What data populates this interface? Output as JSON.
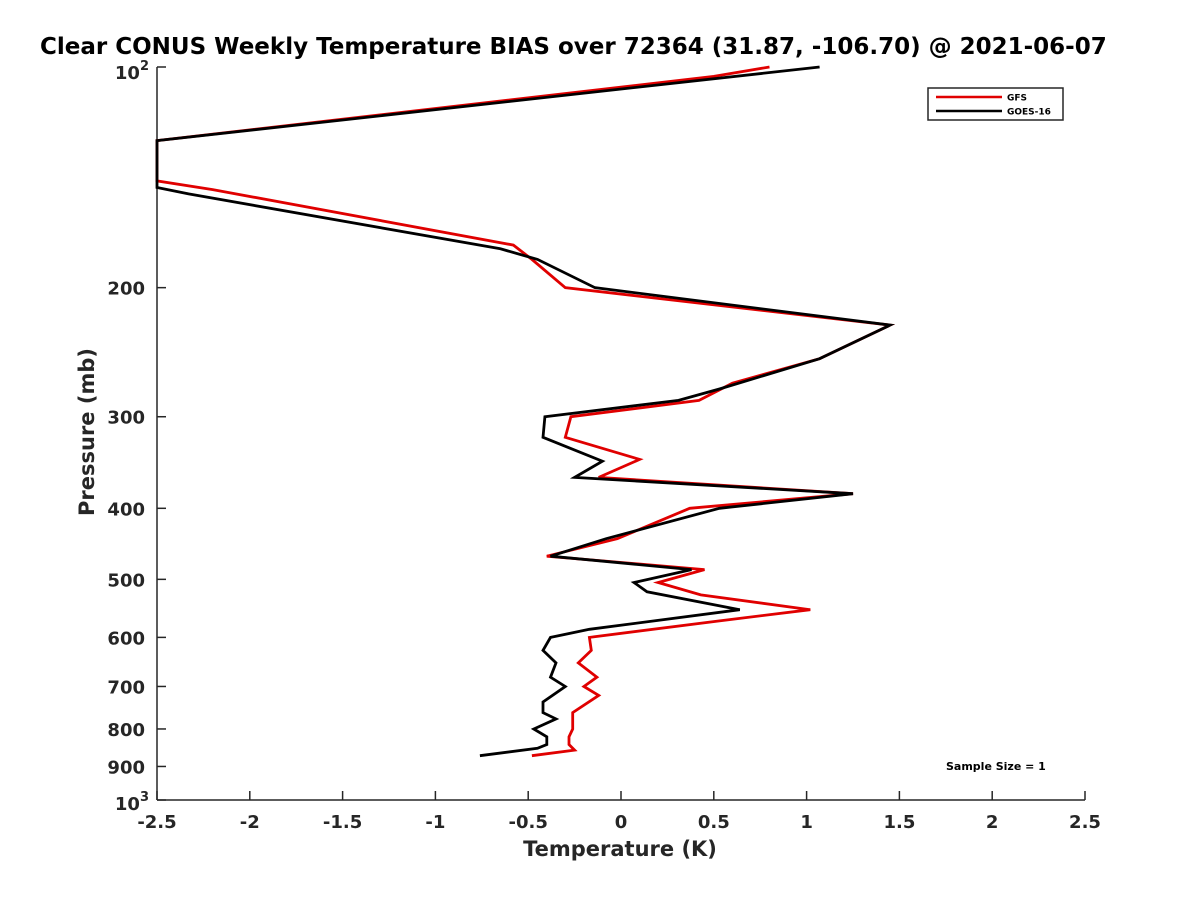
{
  "chart_data": {
    "type": "line",
    "title": "Clear CONUS Weekly Temperature BIAS over 72364 (31.87, -106.70) @ 2021-06-07",
    "xlabel": "Temperature (K)",
    "ylabel": "Pressure (mb)",
    "xlim": [
      -2.5,
      2.5
    ],
    "ylim": [
      100,
      1000
    ],
    "y_scale": "log",
    "y_direction": "reversed",
    "grid": false,
    "legend_position": "top-right",
    "x_ticks": [
      -2.5,
      -2,
      -1.5,
      -1,
      -0.5,
      0,
      0.5,
      1,
      1.5,
      2,
      2.5
    ],
    "x_tick_labels": [
      "-2.5",
      "-2",
      "-1.5",
      "-1",
      "-0.5",
      "0",
      "0.5",
      "1",
      "1.5",
      "2",
      "2.5"
    ],
    "y_ticks": [
      200,
      300,
      400,
      500,
      600,
      700,
      800,
      900
    ],
    "y_tick_labels": [
      "200",
      "300",
      "400",
      "500",
      "600",
      "700",
      "800",
      "900"
    ],
    "y_top_label": {
      "base": "10",
      "exp": "2"
    },
    "y_bottom_label": {
      "base": "10",
      "exp": "3"
    },
    "annotation": "Sample Size = 1",
    "series": [
      {
        "name": "GFS",
        "color": "#e00000",
        "points": [
          {
            "x": 0.8,
            "p": 100
          },
          {
            "x": 0.5,
            "p": 103
          },
          {
            "x": -2.5,
            "p": 126
          },
          {
            "x": -2.5,
            "p": 143
          },
          {
            "x": -2.2,
            "p": 147
          },
          {
            "x": -0.58,
            "p": 175
          },
          {
            "x": -0.48,
            "p": 183
          },
          {
            "x": -0.3,
            "p": 200
          },
          {
            "x": 1.45,
            "p": 225
          },
          {
            "x": 1.07,
            "p": 250
          },
          {
            "x": 0.6,
            "p": 270
          },
          {
            "x": 0.42,
            "p": 285
          },
          {
            "x": -0.27,
            "p": 300
          },
          {
            "x": -0.3,
            "p": 320
          },
          {
            "x": 0.1,
            "p": 343
          },
          {
            "x": -0.12,
            "p": 363
          },
          {
            "x": 1.25,
            "p": 382
          },
          {
            "x": 0.37,
            "p": 400
          },
          {
            "x": -0.02,
            "p": 440
          },
          {
            "x": -0.4,
            "p": 465
          },
          {
            "x": 0.45,
            "p": 485
          },
          {
            "x": 0.2,
            "p": 505
          },
          {
            "x": 0.43,
            "p": 525
          },
          {
            "x": 1.02,
            "p": 550
          },
          {
            "x": 0.52,
            "p": 570
          },
          {
            "x": -0.17,
            "p": 600
          },
          {
            "x": -0.16,
            "p": 625
          },
          {
            "x": -0.23,
            "p": 650
          },
          {
            "x": -0.13,
            "p": 680
          },
          {
            "x": -0.2,
            "p": 700
          },
          {
            "x": -0.12,
            "p": 720
          },
          {
            "x": -0.26,
            "p": 760
          },
          {
            "x": -0.26,
            "p": 800
          },
          {
            "x": -0.28,
            "p": 820
          },
          {
            "x": -0.28,
            "p": 840
          },
          {
            "x": -0.25,
            "p": 855
          },
          {
            "x": -0.48,
            "p": 870
          }
        ]
      },
      {
        "name": "GOES-16",
        "color": "#000000",
        "points": [
          {
            "x": 1.07,
            "p": 100
          },
          {
            "x": -2.5,
            "p": 126
          },
          {
            "x": -2.5,
            "p": 146
          },
          {
            "x": -2.33,
            "p": 149
          },
          {
            "x": -0.65,
            "p": 177
          },
          {
            "x": -0.45,
            "p": 183
          },
          {
            "x": -0.14,
            "p": 200
          },
          {
            "x": 1.45,
            "p": 225
          },
          {
            "x": 1.07,
            "p": 250
          },
          {
            "x": 0.53,
            "p": 275
          },
          {
            "x": 0.31,
            "p": 285
          },
          {
            "x": -0.41,
            "p": 300
          },
          {
            "x": -0.42,
            "p": 320
          },
          {
            "x": -0.1,
            "p": 345
          },
          {
            "x": -0.25,
            "p": 363
          },
          {
            "x": 1.25,
            "p": 382
          },
          {
            "x": 0.53,
            "p": 400
          },
          {
            "x": -0.08,
            "p": 440
          },
          {
            "x": -0.38,
            "p": 465
          },
          {
            "x": 0.38,
            "p": 485
          },
          {
            "x": 0.07,
            "p": 505
          },
          {
            "x": 0.14,
            "p": 520
          },
          {
            "x": 0.64,
            "p": 550
          },
          {
            "x": -0.17,
            "p": 585
          },
          {
            "x": -0.38,
            "p": 600
          },
          {
            "x": -0.42,
            "p": 625
          },
          {
            "x": -0.35,
            "p": 650
          },
          {
            "x": -0.38,
            "p": 680
          },
          {
            "x": -0.3,
            "p": 700
          },
          {
            "x": -0.42,
            "p": 735
          },
          {
            "x": -0.42,
            "p": 760
          },
          {
            "x": -0.35,
            "p": 775
          },
          {
            "x": -0.47,
            "p": 800
          },
          {
            "x": -0.4,
            "p": 820
          },
          {
            "x": -0.4,
            "p": 840
          },
          {
            "x": -0.45,
            "p": 850
          },
          {
            "x": -0.76,
            "p": 870
          }
        ]
      }
    ]
  }
}
